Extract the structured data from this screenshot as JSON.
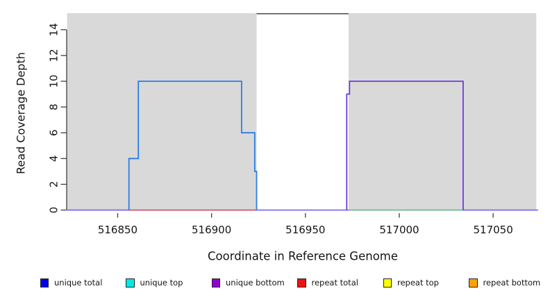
{
  "chart_data": {
    "type": "line",
    "step": true,
    "title": "",
    "xlabel": "Coordinate in Reference Genome",
    "ylabel": "Read Coverage Depth",
    "xlim": [
      516823,
      517074
    ],
    "ylim": [
      0,
      15.3
    ],
    "grid": false,
    "x_ticks": [
      516850,
      516900,
      516950,
      517000,
      517050
    ],
    "y_ticks": [
      0,
      2,
      4,
      6,
      8,
      10,
      12,
      14
    ],
    "shaded_regions": [
      {
        "name": "left-gray-region",
        "x1": 516823,
        "x2": 516924,
        "color": "#d9d9d9"
      },
      {
        "name": "right-gray-region",
        "x1": 516973,
        "x2": 517073,
        "color": "#d9d9d9"
      }
    ],
    "gap_top_border_color": "#4a4a4a",
    "axis_color": "#3f3f3f",
    "text_color": "#141414",
    "series": [
      {
        "name": "baseline-purple",
        "color": "#7d6bef",
        "width": 1.7,
        "points": [
          [
            516823,
            0
          ],
          [
            517074,
            0
          ]
        ]
      },
      {
        "name": "red-baseline-segment",
        "color": "#dc5f5f",
        "width": 1.5,
        "points": [
          [
            516856,
            0
          ],
          [
            516924,
            0
          ]
        ]
      },
      {
        "name": "green-baseline-segment",
        "color": "#7ccb7c",
        "width": 1.5,
        "points": [
          [
            516973,
            0
          ],
          [
            517034,
            0
          ]
        ]
      },
      {
        "name": "blue-step-line",
        "color": "#2b7ce9",
        "width": 1.8,
        "points": [
          [
            516856,
            0
          ],
          [
            516856,
            4
          ],
          [
            516861,
            4
          ],
          [
            516861,
            10
          ],
          [
            516916,
            10
          ],
          [
            516916,
            6
          ],
          [
            516923,
            6
          ],
          [
            516923,
            3
          ],
          [
            516924,
            3
          ],
          [
            516924,
            0
          ]
        ]
      },
      {
        "name": "purple-step-line",
        "color": "#6a3be0",
        "width": 1.8,
        "points": [
          [
            516972,
            0
          ],
          [
            516972,
            9
          ],
          [
            516973.5,
            9
          ],
          [
            516973.5,
            10
          ],
          [
            517034,
            10
          ],
          [
            517034,
            0
          ]
        ]
      }
    ],
    "legend": {
      "position": "bottom",
      "items": [
        {
          "label": "unique total",
          "color": "#0000ee"
        },
        {
          "label": "unique top",
          "color": "#00e8e8"
        },
        {
          "label": "unique bottom",
          "color": "#9400d3"
        },
        {
          "label": "repeat total",
          "color": "#ee1111"
        },
        {
          "label": "repeat top",
          "color": "#ffff00"
        },
        {
          "label": "repeat bottom",
          "color": "#ffa200"
        }
      ]
    }
  }
}
